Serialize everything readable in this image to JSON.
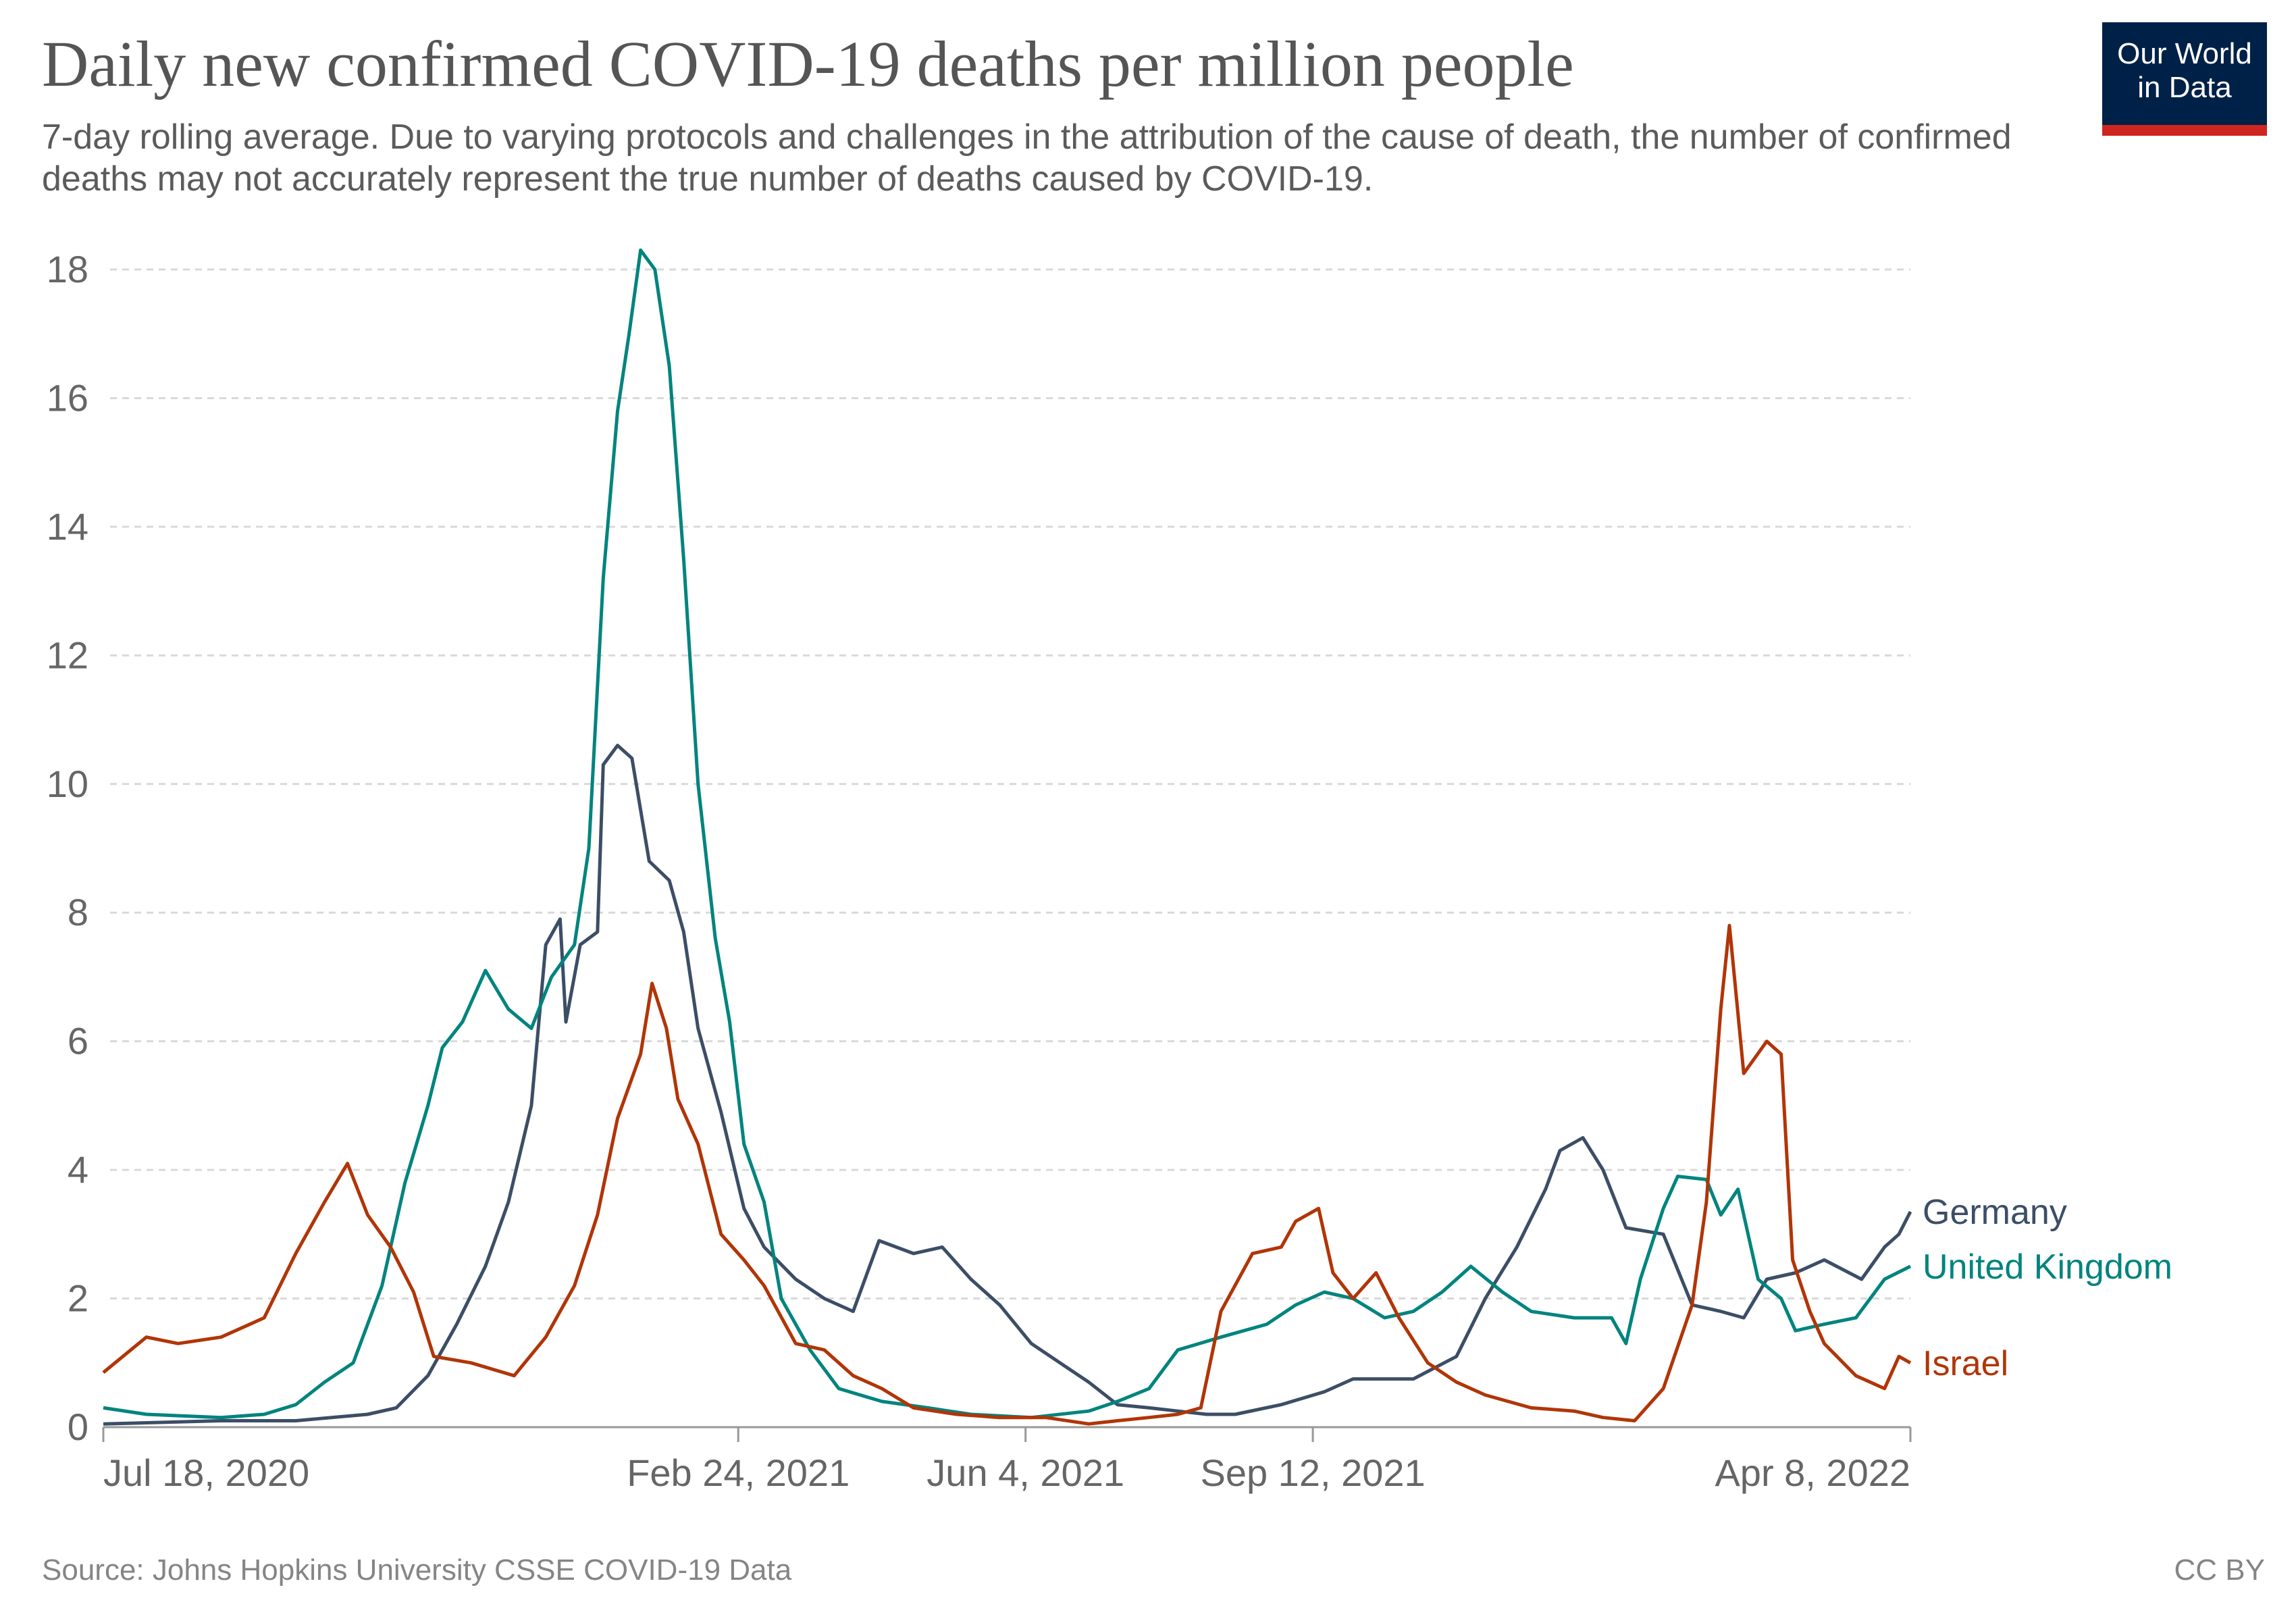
{
  "header": {
    "title": "Daily new confirmed COVID-19 deaths per million people",
    "subtitle": "7-day rolling average. Due to varying protocols and challenges in the attribution of the cause of death, the number of confirmed deaths may not accurately represent the true number of deaths caused by COVID-19.",
    "logo_line1": "Our World",
    "logo_line2": "in Data"
  },
  "footer": {
    "source": "Source: Johns Hopkins University CSSE COVID-19 Data",
    "license": "CC BY"
  },
  "chart_data": {
    "type": "line",
    "title": "Daily new confirmed COVID-19 deaths per million people",
    "xlabel": "",
    "ylabel": "",
    "x_unit": "days since 2020-07-18",
    "xlim": [
      0,
      629
    ],
    "ylim": [
      0,
      18
    ],
    "grid": "horizontal dashed",
    "legend": "line-end labels right",
    "y_ticks": [
      "0",
      "2",
      "4",
      "6",
      "8",
      "10",
      "12",
      "14",
      "16",
      "18"
    ],
    "x_ticks": [
      {
        "day": 0,
        "label": "Jul 18, 2020"
      },
      {
        "day": 221,
        "label": "Feb 24, 2021"
      },
      {
        "day": 321,
        "label": "Jun 4, 2021"
      },
      {
        "day": 421,
        "label": "Sep 12, 2021"
      },
      {
        "day": 629,
        "label": "Apr 8, 2022"
      }
    ],
    "series": [
      {
        "name": "Germany",
        "color": "#3c4e66",
        "label_offset": -0.55,
        "points": [
          [
            0,
            0.05
          ],
          [
            41,
            0.1
          ],
          [
            67,
            0.1
          ],
          [
            92,
            0.2
          ],
          [
            102,
            0.3
          ],
          [
            113,
            0.8
          ],
          [
            123,
            1.6
          ],
          [
            133,
            2.5
          ],
          [
            141,
            3.5
          ],
          [
            149,
            5.0
          ],
          [
            154,
            7.5
          ],
          [
            159,
            7.9
          ],
          [
            161,
            6.3
          ],
          [
            166,
            7.5
          ],
          [
            172,
            7.7
          ],
          [
            174,
            10.3
          ],
          [
            179,
            10.6
          ],
          [
            184,
            10.4
          ],
          [
            190,
            8.8
          ],
          [
            197,
            8.5
          ],
          [
            202,
            7.7
          ],
          [
            207,
            6.2
          ],
          [
            215,
            4.9
          ],
          [
            223,
            3.4
          ],
          [
            230,
            2.8
          ],
          [
            241,
            2.3
          ],
          [
            251,
            2.0
          ],
          [
            261,
            1.8
          ],
          [
            270,
            2.9
          ],
          [
            282,
            2.7
          ],
          [
            292,
            2.8
          ],
          [
            302,
            2.3
          ],
          [
            312,
            1.9
          ],
          [
            323,
            1.3
          ],
          [
            333,
            1.0
          ],
          [
            343,
            0.7
          ],
          [
            353,
            0.35
          ],
          [
            364,
            0.3
          ],
          [
            374,
            0.25
          ],
          [
            384,
            0.2
          ],
          [
            394,
            0.2
          ],
          [
            410,
            0.35
          ],
          [
            425,
            0.55
          ],
          [
            435,
            0.75
          ],
          [
            456,
            0.75
          ],
          [
            471,
            1.1
          ],
          [
            481,
            2.0
          ],
          [
            492,
            2.8
          ],
          [
            502,
            3.7
          ],
          [
            507,
            4.3
          ],
          [
            515,
            4.5
          ],
          [
            522,
            4.0
          ],
          [
            530,
            3.1
          ],
          [
            543,
            3.0
          ],
          [
            553,
            1.9
          ],
          [
            563,
            1.8
          ],
          [
            571,
            1.7
          ],
          [
            579,
            2.3
          ],
          [
            589,
            2.4
          ],
          [
            599,
            2.6
          ],
          [
            612,
            2.3
          ],
          [
            620,
            2.8
          ],
          [
            625,
            3.0
          ],
          [
            629,
            3.35
          ]
        ]
      },
      {
        "name": "United Kingdom",
        "color": "#00847e",
        "label_offset": 0,
        "points": [
          [
            0,
            0.3
          ],
          [
            15,
            0.2
          ],
          [
            41,
            0.15
          ],
          [
            56,
            0.2
          ],
          [
            67,
            0.35
          ],
          [
            77,
            0.7
          ],
          [
            87,
            1.0
          ],
          [
            97,
            2.2
          ],
          [
            105,
            3.8
          ],
          [
            113,
            5.0
          ],
          [
            118,
            5.9
          ],
          [
            125,
            6.3
          ],
          [
            133,
            7.1
          ],
          [
            141,
            6.5
          ],
          [
            149,
            6.2
          ],
          [
            156,
            7.0
          ],
          [
            164,
            7.5
          ],
          [
            169,
            9.0
          ],
          [
            174,
            13.2
          ],
          [
            179,
            15.8
          ],
          [
            183,
            17.0
          ],
          [
            187,
            18.3
          ],
          [
            192,
            18.0
          ],
          [
            197,
            16.5
          ],
          [
            202,
            13.5
          ],
          [
            207,
            10.0
          ],
          [
            213,
            7.6
          ],
          [
            218,
            6.3
          ],
          [
            223,
            4.4
          ],
          [
            230,
            3.5
          ],
          [
            236,
            2.0
          ],
          [
            246,
            1.2
          ],
          [
            256,
            0.6
          ],
          [
            271,
            0.4
          ],
          [
            287,
            0.3
          ],
          [
            302,
            0.2
          ],
          [
            323,
            0.15
          ],
          [
            343,
            0.25
          ],
          [
            353,
            0.4
          ],
          [
            364,
            0.6
          ],
          [
            374,
            1.2
          ],
          [
            389,
            1.4
          ],
          [
            405,
            1.6
          ],
          [
            415,
            1.9
          ],
          [
            425,
            2.1
          ],
          [
            435,
            2.0
          ],
          [
            446,
            1.7
          ],
          [
            456,
            1.8
          ],
          [
            466,
            2.1
          ],
          [
            476,
            2.5
          ],
          [
            487,
            2.1
          ],
          [
            497,
            1.8
          ],
          [
            512,
            1.7
          ],
          [
            525,
            1.7
          ],
          [
            530,
            1.3
          ],
          [
            535,
            2.3
          ],
          [
            543,
            3.4
          ],
          [
            548,
            3.9
          ],
          [
            558,
            3.85
          ],
          [
            563,
            3.3
          ],
          [
            569,
            3.7
          ],
          [
            576,
            2.3
          ],
          [
            584,
            2.0
          ],
          [
            589,
            1.5
          ],
          [
            599,
            1.6
          ],
          [
            610,
            1.7
          ],
          [
            620,
            2.3
          ],
          [
            629,
            2.5
          ]
        ]
      },
      {
        "name": "Israel",
        "color": "#b13507",
        "label_offset": 0.3,
        "points": [
          [
            0,
            0.85
          ],
          [
            15,
            1.4
          ],
          [
            26,
            1.3
          ],
          [
            41,
            1.4
          ],
          [
            56,
            1.7
          ],
          [
            67,
            2.7
          ],
          [
            77,
            3.5
          ],
          [
            85,
            4.1
          ],
          [
            92,
            3.3
          ],
          [
            100,
            2.8
          ],
          [
            108,
            2.1
          ],
          [
            115,
            1.1
          ],
          [
            128,
            1.0
          ],
          [
            143,
            0.8
          ],
          [
            154,
            1.4
          ],
          [
            164,
            2.2
          ],
          [
            172,
            3.3
          ],
          [
            179,
            4.8
          ],
          [
            187,
            5.8
          ],
          [
            191,
            6.9
          ],
          [
            196,
            6.2
          ],
          [
            200,
            5.1
          ],
          [
            207,
            4.4
          ],
          [
            215,
            3.0
          ],
          [
            223,
            2.6
          ],
          [
            230,
            2.2
          ],
          [
            241,
            1.3
          ],
          [
            251,
            1.2
          ],
          [
            261,
            0.8
          ],
          [
            271,
            0.6
          ],
          [
            282,
            0.3
          ],
          [
            297,
            0.2
          ],
          [
            312,
            0.15
          ],
          [
            328,
            0.15
          ],
          [
            343,
            0.05
          ],
          [
            353,
            0.1
          ],
          [
            364,
            0.15
          ],
          [
            374,
            0.2
          ],
          [
            382,
            0.3
          ],
          [
            389,
            1.8
          ],
          [
            400,
            2.7
          ],
          [
            410,
            2.8
          ],
          [
            415,
            3.2
          ],
          [
            423,
            3.4
          ],
          [
            428,
            2.4
          ],
          [
            435,
            2.0
          ],
          [
            443,
            2.4
          ],
          [
            451,
            1.7
          ],
          [
            461,
            1.0
          ],
          [
            471,
            0.7
          ],
          [
            481,
            0.5
          ],
          [
            497,
            0.3
          ],
          [
            512,
            0.25
          ],
          [
            522,
            0.15
          ],
          [
            533,
            0.1
          ],
          [
            543,
            0.6
          ],
          [
            553,
            1.9
          ],
          [
            558,
            3.5
          ],
          [
            563,
            6.5
          ],
          [
            566,
            7.8
          ],
          [
            571,
            5.5
          ],
          [
            579,
            6.0
          ],
          [
            584,
            5.8
          ],
          [
            588,
            2.6
          ],
          [
            594,
            1.8
          ],
          [
            599,
            1.3
          ],
          [
            610,
            0.8
          ],
          [
            620,
            0.6
          ],
          [
            625,
            1.1
          ],
          [
            629,
            1.0
          ]
        ]
      }
    ]
  }
}
